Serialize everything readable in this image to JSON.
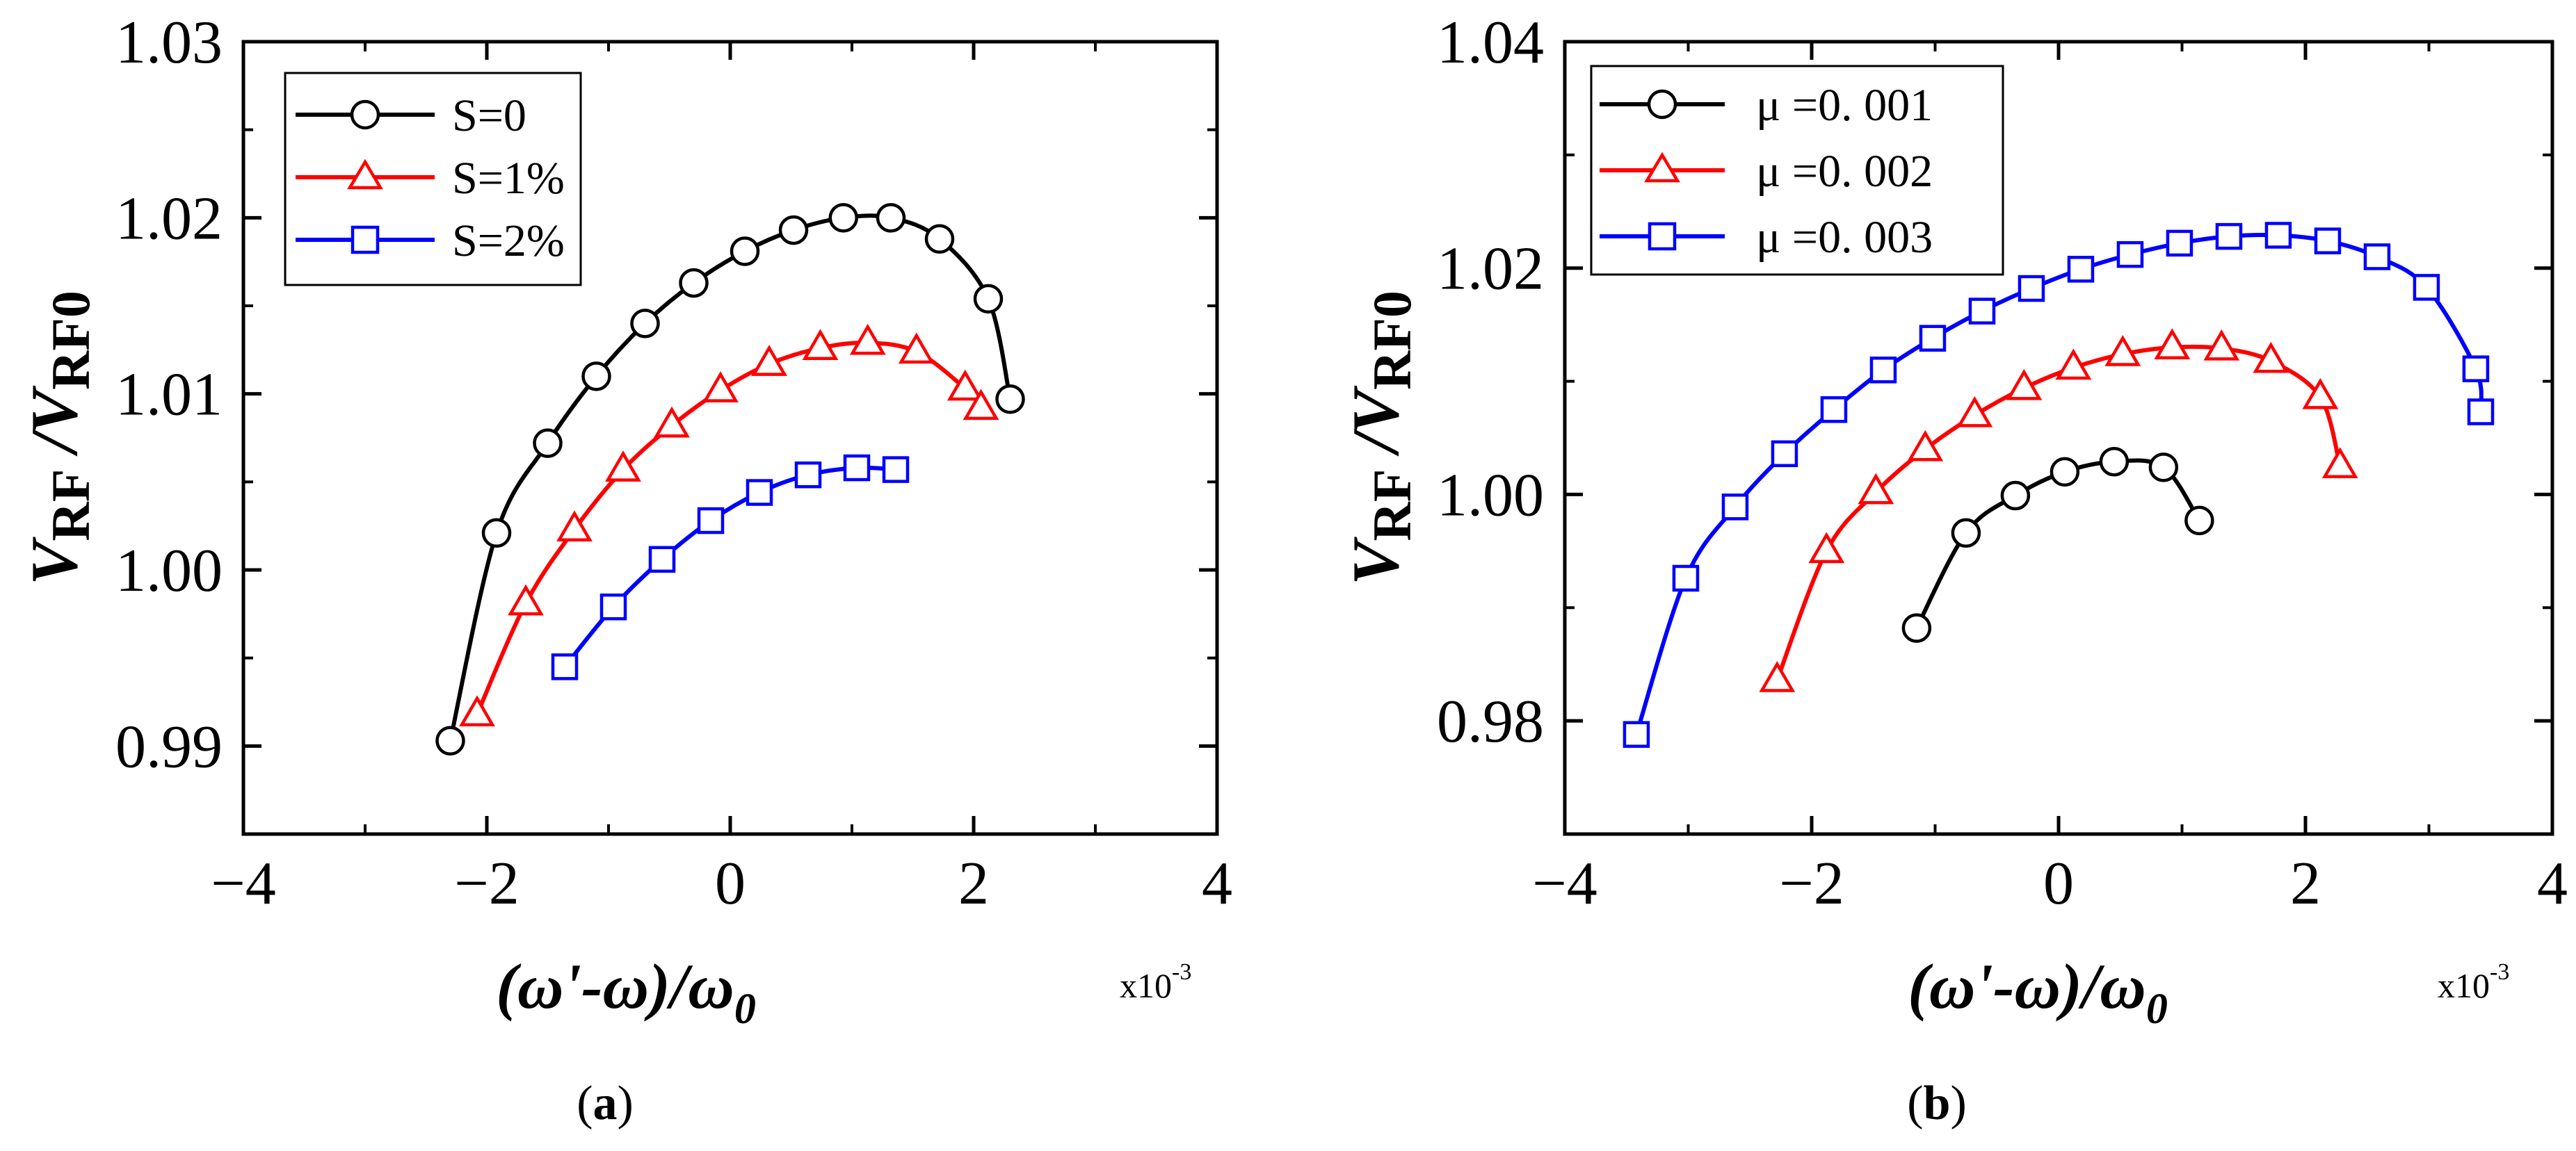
{
  "chart_data": [
    {
      "type": "line",
      "panel_label": "a",
      "xlabel": "(ω'-ω)/ω",
      "xlabel_sub": "0",
      "ylabel": "V",
      "ylabel_sub": "RF",
      "ylabel_den": "V",
      "ylabel_den_sub": "RF0",
      "x_multiplier": "x10",
      "x_multiplier_exp": "-3",
      "xlim": [
        -4,
        4
      ],
      "ylim": [
        0.985,
        1.03
      ],
      "xticks": [
        -4,
        -2,
        0,
        2,
        4
      ],
      "xtick_labels": [
        "−4",
        "−2",
        "0",
        "2",
        "4"
      ],
      "yticks": [
        0.99,
        1.0,
        1.01,
        1.02,
        1.03
      ],
      "ytick_labels": [
        "0.99",
        "1.00",
        "1.01",
        "1.02",
        "1.03"
      ],
      "legend_position": "top-left",
      "series": [
        {
          "name": "S=0",
          "color": "#000000",
          "marker": "circle",
          "x": [
            -2.3,
            -1.92,
            -1.5,
            -1.1,
            -0.7,
            -0.3,
            0.12,
            0.52,
            0.93,
            1.32,
            1.72,
            2.12,
            2.3
          ],
          "y": [
            0.9903,
            1.0021,
            1.0072,
            1.011,
            1.014,
            1.0163,
            1.0181,
            1.0193,
            1.02,
            1.02,
            1.0188,
            1.0154,
            1.0097
          ]
        },
        {
          "name": "S=1%",
          "color": "#ff0000",
          "marker": "triangle",
          "x": [
            -2.08,
            -1.68,
            -1.28,
            -0.88,
            -0.48,
            -0.08,
            0.32,
            0.74,
            1.13,
            1.53,
            1.93,
            2.06
          ],
          "y": [
            0.9918,
            0.9981,
            1.0023,
            1.0057,
            1.0082,
            1.0102,
            1.0117,
            1.0126,
            1.0129,
            1.0124,
            1.0103,
            1.0092
          ]
        },
        {
          "name": "S=2%",
          "color": "#0000ff",
          "marker": "square",
          "x": [
            -1.36,
            -0.96,
            -0.56,
            -0.16,
            0.24,
            0.64,
            1.04,
            1.36
          ],
          "y": [
            0.9945,
            0.9979,
            1.0006,
            1.0028,
            1.0044,
            1.0054,
            1.0058,
            1.0057
          ]
        }
      ]
    },
    {
      "type": "line",
      "panel_label": "b",
      "xlabel": "(ω'-ω)/ω",
      "xlabel_sub": "0",
      "ylabel": "V",
      "ylabel_sub": "RF",
      "ylabel_den": "V",
      "ylabel_den_sub": "RF0",
      "x_multiplier": "x10",
      "x_multiplier_exp": "-3",
      "xlim": [
        -4,
        4
      ],
      "ylim": [
        0.97,
        1.04
      ],
      "xticks": [
        -4,
        -2,
        0,
        2,
        4
      ],
      "xtick_labels": [
        "−4",
        "−2",
        "0",
        "2",
        "4"
      ],
      "yticks": [
        0.98,
        1.0,
        1.02,
        1.04
      ],
      "ytick_labels": [
        "0.98",
        "1.00",
        "1.02",
        "1.04"
      ],
      "legend_position": "top-left",
      "series": [
        {
          "name": "μ =0. 001",
          "color": "#000000",
          "marker": "circle",
          "x": [
            -1.15,
            -0.75,
            -0.35,
            0.05,
            0.45,
            0.85,
            1.14
          ],
          "y": [
            0.9882,
            0.9966,
            0.9999,
            1.002,
            1.0029,
            1.0024,
            0.9977
          ]
        },
        {
          "name": "μ =0. 002",
          "color": "#ff0000",
          "marker": "triangle",
          "x": [
            -2.28,
            -1.88,
            -1.48,
            -1.08,
            -0.68,
            -0.28,
            0.12,
            0.52,
            0.92,
            1.32,
            1.72,
            2.12,
            2.28
          ],
          "y": [
            0.9836,
            0.995,
            1.0002,
            1.004,
            1.007,
            1.0094,
            1.0112,
            1.0124,
            1.013,
            1.0129,
            1.0118,
            1.0086,
            1.0025
          ]
        },
        {
          "name": "μ =0. 003",
          "color": "#0000ff",
          "marker": "square",
          "x": [
            -3.42,
            -3.02,
            -2.62,
            -2.22,
            -1.82,
            -1.42,
            -1.02,
            -0.62,
            -0.22,
            0.18,
            0.58,
            0.98,
            1.38,
            1.78,
            2.18,
            2.58,
            2.98,
            3.38,
            3.42
          ],
          "y": [
            0.9788,
            0.9926,
            0.9989,
            1.0036,
            1.0075,
            1.011,
            1.0138,
            1.0162,
            1.0182,
            1.0199,
            1.0212,
            1.0222,
            1.0228,
            1.0229,
            1.0224,
            1.021,
            1.0183,
            1.0111,
            1.0073
          ]
        }
      ]
    }
  ]
}
